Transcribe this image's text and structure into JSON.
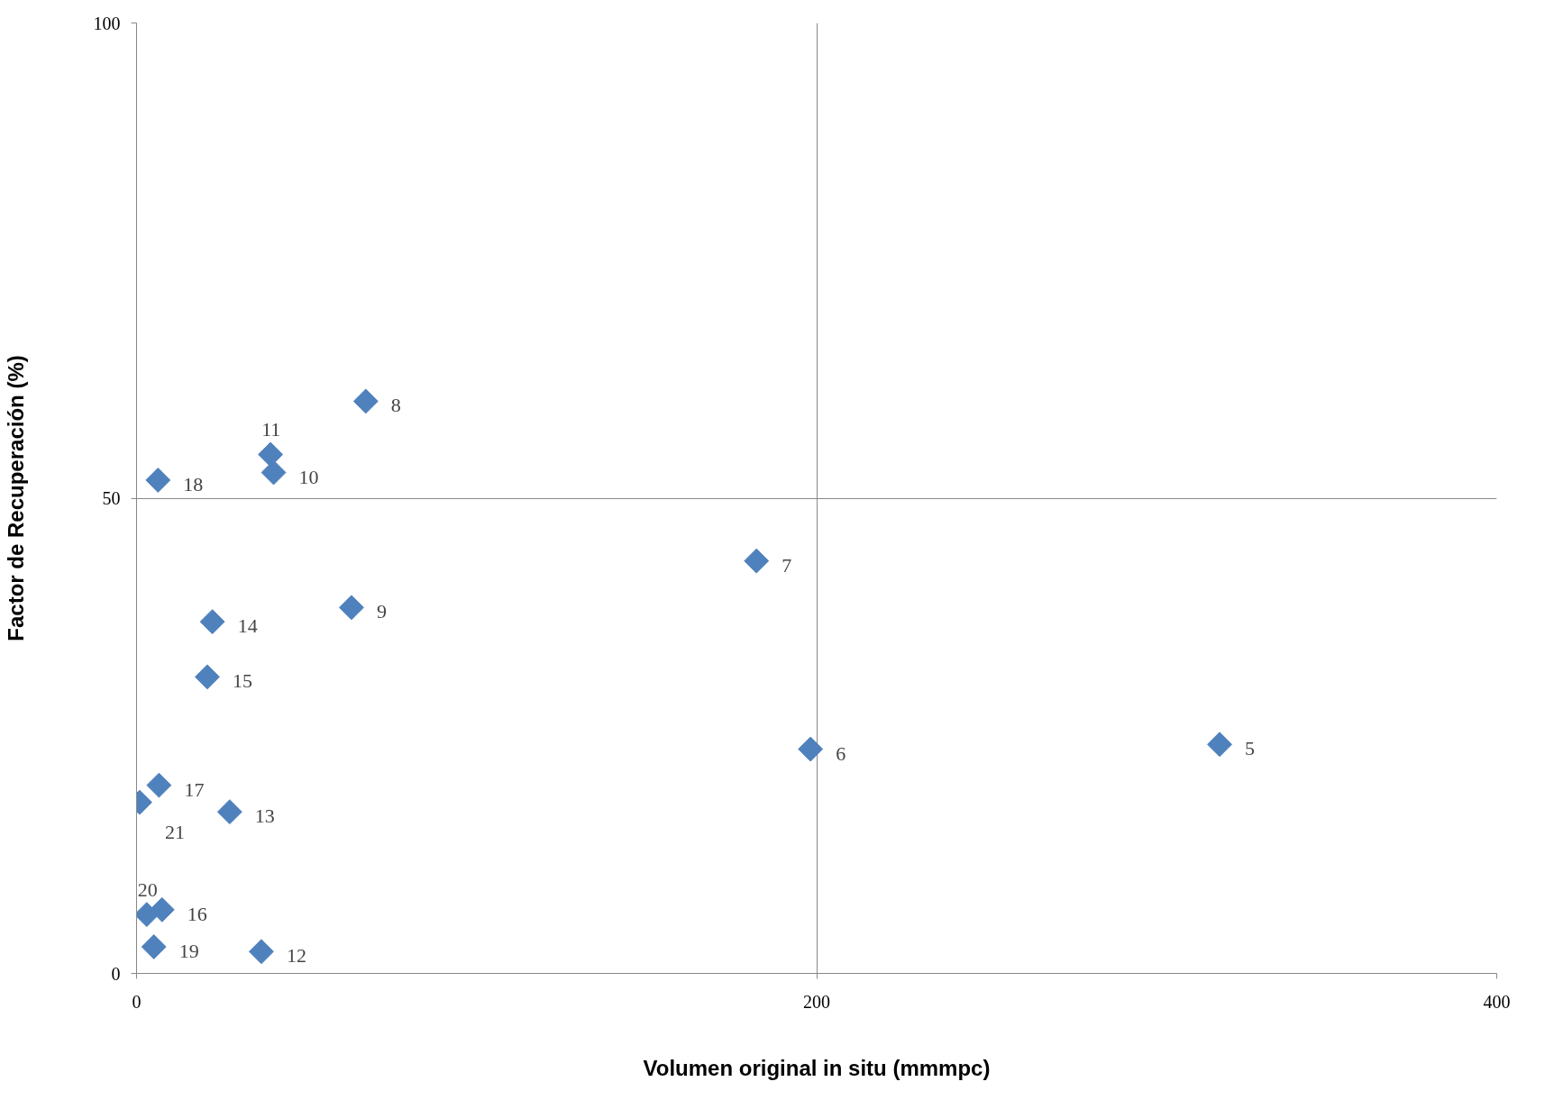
{
  "chart_data": {
    "type": "scatter",
    "xlabel": "Volumen original in situ (mmmpc)",
    "ylabel": "Factor de Recuperación (%)",
    "x": [
      318.5,
      198.2,
      182.3,
      67.4,
      63.2,
      40.3,
      39.4,
      36.7,
      27.4,
      22.3,
      20.8,
      7.5,
      6.6,
      6.3,
      5.1,
      3.0,
      0.9
    ],
    "series": [
      {
        "color": "#4f81bd",
        "values": [
          24.1,
          23.6,
          43.4,
          60.2,
          38.5,
          52.7,
          54.6,
          2.3,
          17.0,
          37.0,
          31.2,
          6.7,
          19.8,
          51.9,
          2.8,
          6.2,
          18.0
        ]
      }
    ],
    "annotations": [
      {
        "text": "5",
        "x": 318.5,
        "y": 24.1
      },
      {
        "text": "6",
        "x": 198.2,
        "y": 23.6
      },
      {
        "text": "7",
        "x": 182.3,
        "y": 43.4
      },
      {
        "text": "8",
        "x": 67.4,
        "y": 60.2
      },
      {
        "text": "9",
        "x": 63.2,
        "y": 38.5
      },
      {
        "text": "10",
        "x": 40.3,
        "y": 52.7
      },
      {
        "text": "11",
        "x": 39.4,
        "y": 54.6
      },
      {
        "text": "12",
        "x": 36.7,
        "y": 2.3
      },
      {
        "text": "13",
        "x": 27.4,
        "y": 17.0
      },
      {
        "text": "14",
        "x": 22.3,
        "y": 37.0
      },
      {
        "text": "15",
        "x": 20.8,
        "y": 31.2
      },
      {
        "text": "16",
        "x": 7.5,
        "y": 6.7
      },
      {
        "text": "17",
        "x": 6.6,
        "y": 19.8
      },
      {
        "text": "18",
        "x": 6.3,
        "y": 51.9
      },
      {
        "text": "19",
        "x": 5.1,
        "y": 2.8
      },
      {
        "text": "20",
        "x": 3.0,
        "y": 6.2
      },
      {
        "text": "21",
        "x": 0.9,
        "y": 18.0
      }
    ],
    "xlim": [
      0,
      400
    ],
    "xticks": [
      0,
      200,
      400
    ],
    "ylim": [
      0,
      100
    ],
    "yticks": [
      0,
      50,
      100
    ],
    "grid": true,
    "marker": "diamond"
  }
}
